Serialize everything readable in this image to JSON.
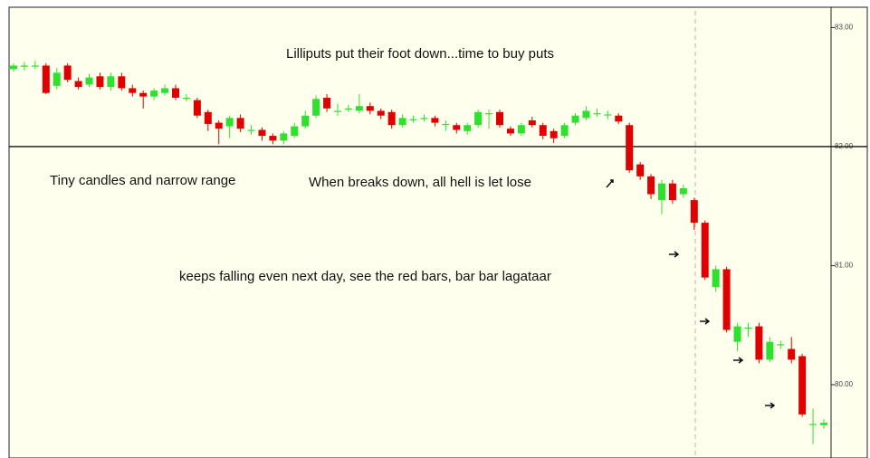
{
  "chart_data": {
    "type": "candlestick",
    "annotations": [
      "Lilliputs put their foot down...time to buy puts",
      "Tiny candles and narrow range",
      "When breaks down, all hell is let lose",
      "keeps falling even next day, see the red bars, bar bar lagataar"
    ],
    "open": [
      82.65,
      82.67,
      82.68,
      82.68,
      82.51,
      82.68,
      82.55,
      82.52,
      82.59,
      82.5,
      82.59,
      82.49,
      82.45,
      82.42,
      82.45,
      82.49,
      82.41,
      82.39,
      82.29,
      82.2,
      82.17,
      82.24,
      82.14,
      82.14,
      82.09,
      82.05,
      82.09,
      82.17,
      82.26,
      82.41,
      82.3,
      82.32,
      82.3,
      82.34,
      82.3,
      82.29,
      82.18,
      82.23,
      82.24,
      82.24,
      82.19,
      82.18,
      82.13,
      82.18,
      82.28,
      82.29,
      82.15,
      82.11,
      82.22,
      82.18,
      82.13,
      82.09,
      82.2,
      82.24,
      82.28,
      82.27,
      82.26,
      82.18,
      81.85,
      81.75,
      81.55,
      81.69,
      81.6,
      81.55,
      81.36,
      80.82,
      80.97,
      80.36,
      80.48,
      80.49,
      80.21,
      80.34,
      80.3,
      80.24,
      79.67,
      79.66
    ],
    "high": [
      82.7,
      82.71,
      82.72,
      82.7,
      82.66,
      82.7,
      82.58,
      82.61,
      82.62,
      82.62,
      82.62,
      82.52,
      82.47,
      82.49,
      82.52,
      82.52,
      82.44,
      82.41,
      82.31,
      82.22,
      82.26,
      82.27,
      82.18,
      82.16,
      82.11,
      82.13,
      82.2,
      82.3,
      82.43,
      82.44,
      82.36,
      82.35,
      82.44,
      82.37,
      82.32,
      82.31,
      82.27,
      82.26,
      82.27,
      82.26,
      82.22,
      82.2,
      82.2,
      82.31,
      82.31,
      82.31,
      82.17,
      82.2,
      82.25,
      82.2,
      82.15,
      82.2,
      82.28,
      82.34,
      82.32,
      82.3,
      82.28,
      82.2,
      81.87,
      81.77,
      81.72,
      81.72,
      81.68,
      81.57,
      81.38,
      81.0,
      80.99,
      80.52,
      80.52,
      80.52,
      80.4,
      80.37,
      80.4,
      80.26,
      79.8,
      79.71
    ],
    "low": [
      82.63,
      82.64,
      82.65,
      82.44,
      82.48,
      82.54,
      82.48,
      82.5,
      82.48,
      82.47,
      82.47,
      82.42,
      82.32,
      82.39,
      82.43,
      82.39,
      82.38,
      82.24,
      82.13,
      82.02,
      82.07,
      82.12,
      82.1,
      82.05,
      82.02,
      82.02,
      82.07,
      82.15,
      82.24,
      82.29,
      82.26,
      82.29,
      82.28,
      82.27,
      82.23,
      82.15,
      82.16,
      82.2,
      82.21,
      82.17,
      82.13,
      82.11,
      82.1,
      82.16,
      82.15,
      82.16,
      82.09,
      82.09,
      82.16,
      82.06,
      82.03,
      82.07,
      82.18,
      82.22,
      82.25,
      82.23,
      82.19,
      81.78,
      81.72,
      81.56,
      81.43,
      81.52,
      81.57,
      81.3,
      80.88,
      80.78,
      80.44,
      80.28,
      80.4,
      80.18,
      80.19,
      80.3,
      80.18,
      79.73,
      79.5,
      79.63
    ],
    "close": [
      82.68,
      82.68,
      82.68,
      82.45,
      82.62,
      82.56,
      82.5,
      82.58,
      82.5,
      82.59,
      82.49,
      82.45,
      82.42,
      82.47,
      82.49,
      82.41,
      82.41,
      82.26,
      82.19,
      82.15,
      82.24,
      82.15,
      82.14,
      82.09,
      82.05,
      82.11,
      82.17,
      82.26,
      82.4,
      82.32,
      82.3,
      82.32,
      82.34,
      82.3,
      82.26,
      82.18,
      82.24,
      82.23,
      82.24,
      82.2,
      82.19,
      82.14,
      82.18,
      82.29,
      82.28,
      82.18,
      82.11,
      82.18,
      82.18,
      82.09,
      82.07,
      82.18,
      82.26,
      82.3,
      82.28,
      82.27,
      82.21,
      81.8,
      81.75,
      81.6,
      81.69,
      81.55,
      81.65,
      81.36,
      80.9,
      80.97,
      80.46,
      80.49,
      80.48,
      80.21,
      80.36,
      80.34,
      80.21,
      79.75,
      79.67,
      79.68
    ],
    "up_color": "#2fe02f",
    "down_color": "#e00000",
    "hline": 82,
    "ylim": [
      79.43,
      83.17
    ],
    "yticks": [
      {
        "value": 80,
        "label": "80.00"
      },
      {
        "value": 81,
        "label": "81.00"
      },
      {
        "value": 82,
        "label": "82.00"
      },
      {
        "value": 83,
        "label": "83.00"
      }
    ]
  }
}
